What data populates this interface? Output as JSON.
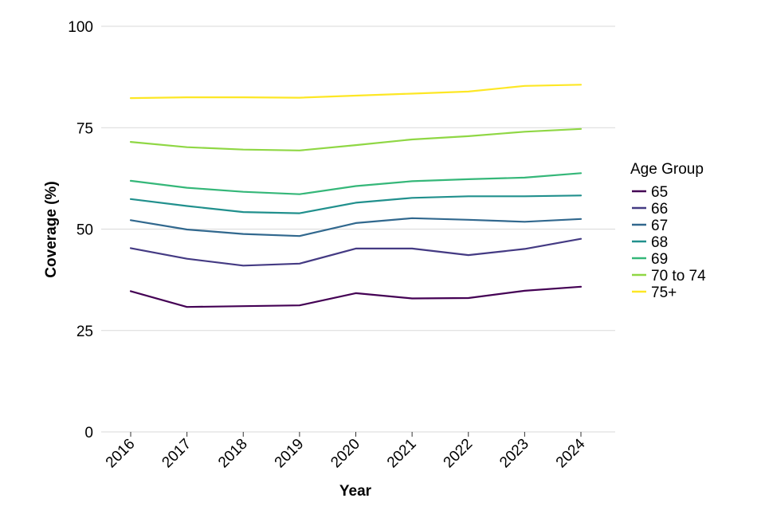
{
  "chart_data": {
    "type": "line",
    "title": "",
    "xlabel": "Year",
    "ylabel": "Coverage (%)",
    "x": [
      "2016",
      "2017",
      "2018",
      "2019",
      "2020",
      "2021",
      "2022",
      "2023",
      "2024"
    ],
    "ylim": [
      0,
      100
    ],
    "yticks": [
      "0",
      "25",
      "50",
      "75",
      "100"
    ],
    "grid": "horizontal",
    "legend": {
      "title": "Age Group",
      "placement": "right"
    },
    "series": [
      {
        "name": "65",
        "color": "#440154",
        "values": [
          34.7,
          30.8,
          31.0,
          31.2,
          34.2,
          32.9,
          33.0,
          34.8,
          35.8
        ]
      },
      {
        "name": "66",
        "color": "#443a83",
        "values": [
          45.3,
          42.7,
          41.0,
          41.5,
          45.2,
          45.2,
          43.6,
          45.1,
          47.6
        ]
      },
      {
        "name": "67",
        "color": "#31688e",
        "values": [
          52.2,
          49.9,
          48.8,
          48.3,
          51.5,
          52.7,
          52.3,
          51.8,
          52.5
        ]
      },
      {
        "name": "68",
        "color": "#21908d",
        "values": [
          57.4,
          55.7,
          54.2,
          53.9,
          56.5,
          57.7,
          58.1,
          58.1,
          58.3
        ]
      },
      {
        "name": "69",
        "color": "#35b779",
        "values": [
          61.9,
          60.2,
          59.2,
          58.6,
          60.6,
          61.8,
          62.3,
          62.7,
          63.8
        ]
      },
      {
        "name": "70 to 74",
        "color": "#8fd744",
        "values": [
          71.5,
          70.2,
          69.6,
          69.4,
          70.7,
          72.1,
          72.9,
          74.0,
          74.7
        ]
      },
      {
        "name": "75+",
        "color": "#fde725",
        "values": [
          82.3,
          82.5,
          82.5,
          82.4,
          82.9,
          83.4,
          83.9,
          85.3,
          85.6
        ]
      }
    ]
  }
}
